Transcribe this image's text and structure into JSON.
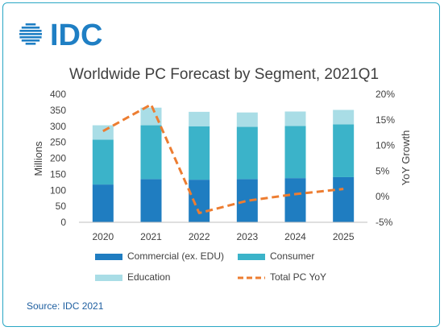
{
  "logo": {
    "text": "IDC",
    "color": "#1f7fc4"
  },
  "colors": {
    "commercial": "#1f7dc1",
    "consumer": "#3bb3c9",
    "education": "#a9dde6",
    "yoy": "#ed7d31",
    "frame": "#2aa7c4",
    "text": "#404040"
  },
  "chart_data": {
    "type": "bar",
    "stacked": true,
    "title": "Worldwide PC Forecast by Segment, 2021Q1",
    "ylabel": "Millions",
    "y2label": "YoY Growth",
    "categories": [
      "2020",
      "2021",
      "2022",
      "2023",
      "2024",
      "2025"
    ],
    "ylim": [
      0,
      400
    ],
    "yticks": [
      "0",
      "50",
      "100",
      "150",
      "200",
      "250",
      "300",
      "350",
      "400"
    ],
    "y2lim": [
      -5,
      20
    ],
    "y2ticks": [
      "-5%",
      "0%",
      "5%",
      "10%",
      "15%",
      "20%"
    ],
    "series": [
      {
        "name": "Commercial (ex. EDU)",
        "values": [
          118,
          135,
          133,
          135,
          138,
          141
        ]
      },
      {
        "name": "Consumer",
        "values": [
          140,
          168,
          167,
          163,
          163,
          165
        ]
      },
      {
        "name": "Education",
        "values": [
          45,
          55,
          45,
          45,
          45,
          45
        ]
      }
    ],
    "line": {
      "name": "Total PC YoY",
      "values": [
        12.8,
        18.0,
        -3.2,
        -0.8,
        0.5,
        1.5
      ],
      "style": "dashed",
      "axis": "secondary"
    },
    "grid": false,
    "legend": "bottom"
  },
  "source": "Source: IDC 2021"
}
